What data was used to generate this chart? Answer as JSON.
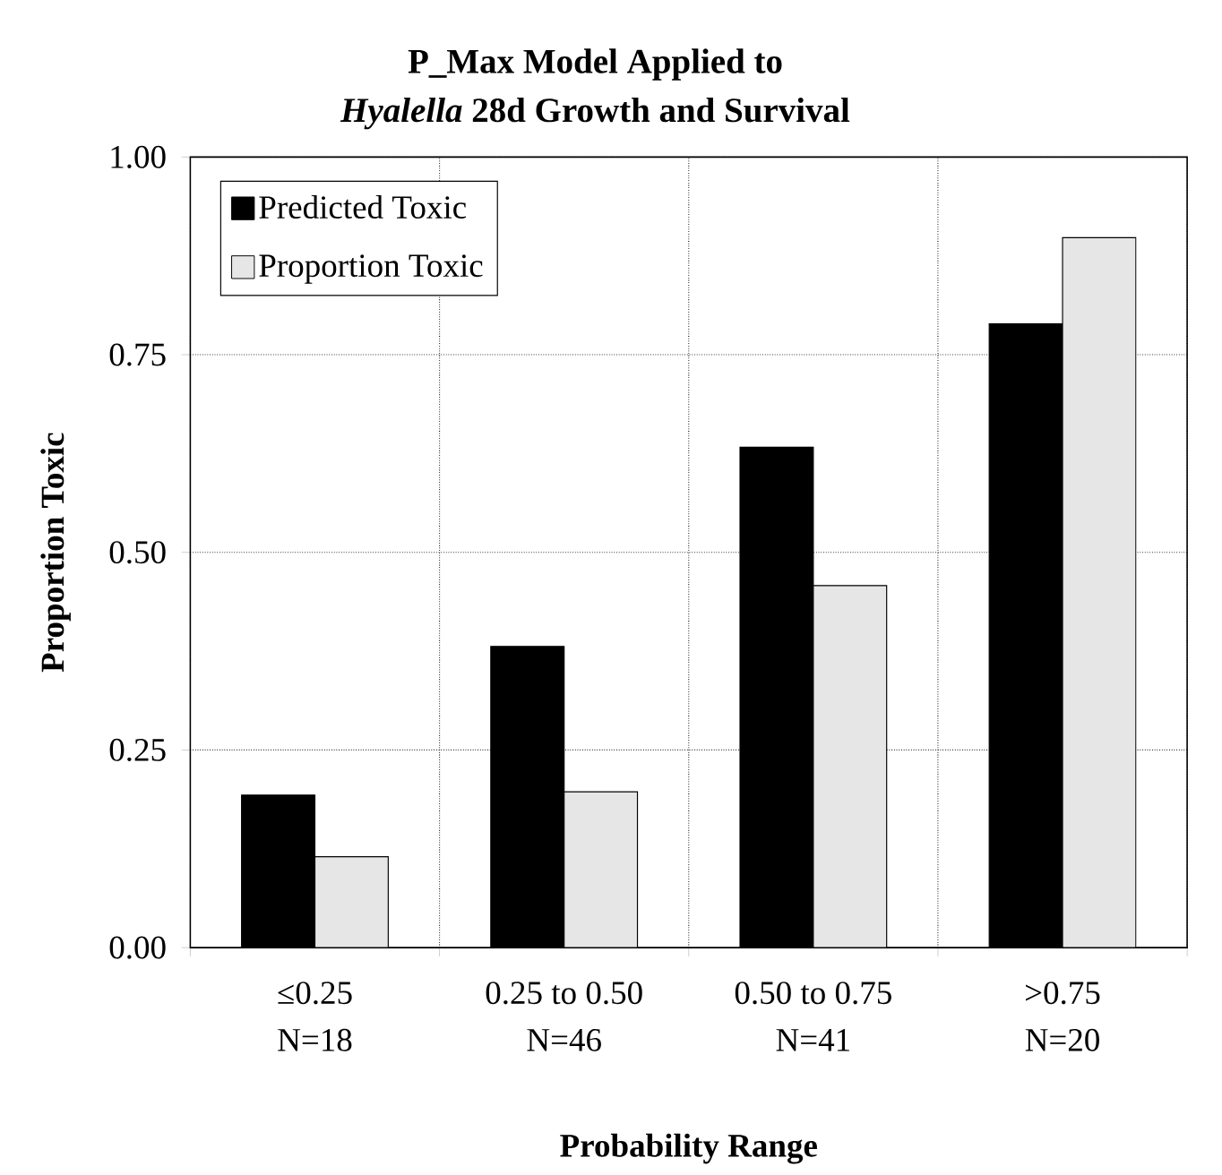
{
  "chart_data": {
    "type": "bar",
    "title": "P_Max Model Applied to\n*Hyalella* 28d Growth and Survival",
    "xlabel": "Probability Range",
    "ylabel": "Proportion Toxic",
    "categories": [
      "≤0.25\nN=18",
      "0.25 to 0.50\nN=46",
      "0.50 to 0.75\nN=41",
      ">0.75\nN=20"
    ],
    "series": [
      {
        "name": "Predicted Toxic",
        "color": "#000000",
        "values": [
          0.193,
          0.381,
          0.633,
          0.789
        ]
      },
      {
        "name": "Proportion Toxic",
        "color": "#e6e6e6",
        "values": [
          0.115,
          0.197,
          0.458,
          0.898
        ]
      }
    ],
    "ylim": [
      0,
      1
    ],
    "yticks": [
      {
        "value": 0,
        "label": "0.00"
      },
      {
        "value": 0.25,
        "label": "0.25"
      },
      {
        "value": 0.5,
        "label": "0.50"
      },
      {
        "value": 0.75,
        "label": "0.75"
      },
      {
        "value": 1,
        "label": "1.00"
      }
    ],
    "grid": true,
    "legend": "top left"
  }
}
